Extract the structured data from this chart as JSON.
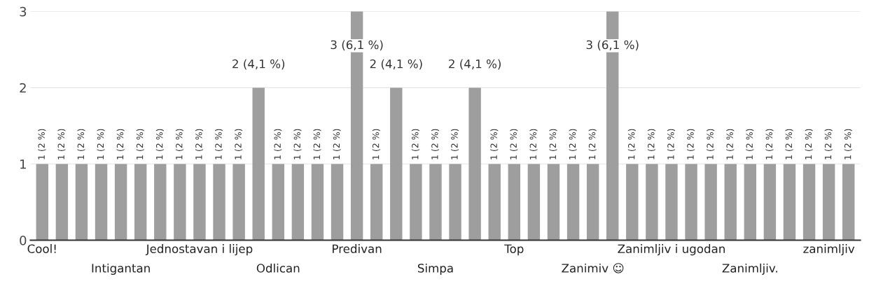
{
  "chart_data": {
    "type": "bar",
    "categories": [
      "Cool!",
      null,
      null,
      null,
      "Intigantan",
      null,
      null,
      null,
      "Jednostavan i lijep",
      null,
      null,
      null,
      "Odlican",
      null,
      null,
      null,
      "Predivan",
      null,
      null,
      null,
      "Simpa",
      null,
      null,
      null,
      "Top",
      null,
      null,
      null,
      "Zanimiv ☺",
      null,
      null,
      null,
      "Zanimljiv i ugodan",
      null,
      null,
      null,
      "Zanimljiv.",
      null,
      null,
      null,
      "zanimljiv",
      null
    ],
    "values": [
      1,
      1,
      1,
      1,
      1,
      1,
      1,
      1,
      1,
      1,
      1,
      2,
      1,
      1,
      1,
      1,
      3,
      1,
      2,
      1,
      1,
      1,
      2,
      1,
      1,
      1,
      1,
      1,
      1,
      3,
      1,
      1,
      1,
      1,
      1,
      1,
      1,
      1,
      1,
      1,
      1,
      1
    ],
    "value_labels": [
      "1 (2 %)",
      "1 (2 %)",
      "1 (2 %)",
      "1 (2 %)",
      "1 (2 %)",
      "1 (2 %)",
      "1 (2 %)",
      "1 (2 %)",
      "1 (2 %)",
      "1 (2 %)",
      "1 (2 %)",
      "2 (4,1 %)",
      "1 (2 %)",
      "1 (2 %)",
      "1 (2 %)",
      "1 (2 %)",
      "3 (6,1 %)",
      "1 (2 %)",
      "2 (4,1 %)",
      "1 (2 %)",
      "1 (2 %)",
      "1 (2 %)",
      "2 (4,1 %)",
      "1 (2 %)",
      "1 (2 %)",
      "1 (2 %)",
      "1 (2 %)",
      "1 (2 %)",
      "1 (2 %)",
      "3 (6,1 %)",
      "1 (2 %)",
      "1 (2 %)",
      "1 (2 %)",
      "1 (2 %)",
      "1 (2 %)",
      "1 (2 %)",
      "1 (2 %)",
      "1 (2 %)",
      "1 (2 %)",
      "1 (2 %)",
      "1 (2 %)",
      "1 (2 %)"
    ],
    "color": "#9e9e9e",
    "ylim": [
      0,
      3
    ],
    "yticks": [
      0,
      1,
      2,
      3
    ],
    "grid": "y"
  }
}
